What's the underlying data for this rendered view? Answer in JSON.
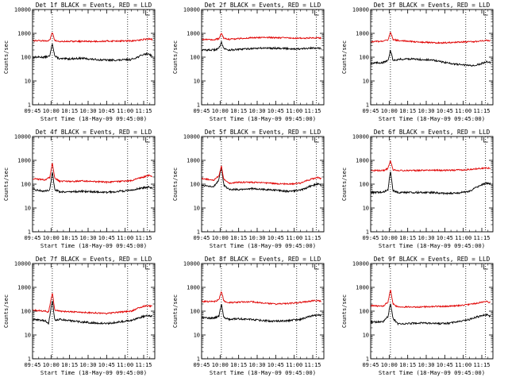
{
  "figure": {
    "ylabel": "Counts/sec",
    "xlabel": "Start Time (18-May-09 09:45:00)",
    "ytick_labels": [
      "1",
      "10",
      "100",
      "1000",
      "10000"
    ],
    "ytick_values": [
      1,
      10,
      100,
      1000,
      10000
    ],
    "xtick_labels": [
      "09:45",
      "10:00",
      "10:15",
      "10:30",
      "10:45",
      "11:00",
      "11:15"
    ],
    "colors": {
      "events": "#000000",
      "lld": "#e00000",
      "axes": "#000000",
      "marker": "#000000"
    }
  },
  "chart_data": [
    {
      "type": "line",
      "title": "Det 1f BLACK = Events, RED = LLD",
      "xlabel": "Start Time (18-May-09 09:45:00)",
      "ylabel": "Counts/sec",
      "x_unit": "minutes after 09:45",
      "xlim": [
        0,
        99
      ],
      "ylim": [
        1,
        10000
      ],
      "y_scale": "log",
      "markers_vertical": [
        16,
        77,
        93
      ],
      "series": [
        {
          "name": "Events",
          "color": "#000000",
          "x": [
            0,
            10,
            14,
            16,
            18,
            22,
            30,
            40,
            50,
            60,
            70,
            80,
            85,
            90,
            94,
            97
          ],
          "values": [
            100,
            100,
            110,
            400,
            110,
            85,
            85,
            90,
            80,
            75,
            75,
            80,
            100,
            130,
            140,
            110
          ]
        },
        {
          "name": "LLD",
          "color": "#e00000",
          "x": [
            0,
            10,
            14,
            16,
            18,
            22,
            30,
            40,
            50,
            60,
            70,
            80,
            85,
            90,
            94,
            97
          ],
          "values": [
            500,
            480,
            520,
            1100,
            500,
            450,
            460,
            460,
            460,
            470,
            480,
            480,
            500,
            560,
            580,
            560
          ]
        }
      ]
    },
    {
      "type": "line",
      "title": "Det 2f BLACK = Events, RED = LLD",
      "xlabel": "Start Time (18-May-09 09:45:00)",
      "ylabel": "Counts/sec",
      "x_unit": "minutes after 09:45",
      "xlim": [
        0,
        99
      ],
      "ylim": [
        1,
        10000
      ],
      "y_scale": "log",
      "markers_vertical": [
        16,
        77,
        93
      ],
      "series": [
        {
          "name": "Events",
          "color": "#000000",
          "x": [
            0,
            10,
            14,
            16,
            18,
            22,
            30,
            40,
            50,
            60,
            70,
            80,
            85,
            90,
            94,
            97
          ],
          "values": [
            200,
            200,
            230,
            450,
            230,
            200,
            210,
            230,
            240,
            240,
            230,
            220,
            230,
            240,
            250,
            230
          ]
        },
        {
          "name": "LLD",
          "color": "#e00000",
          "x": [
            0,
            10,
            14,
            16,
            18,
            22,
            30,
            40,
            50,
            60,
            70,
            80,
            85,
            90,
            94,
            97
          ],
          "values": [
            550,
            530,
            600,
            1000,
            620,
            560,
            600,
            650,
            680,
            660,
            640,
            620,
            630,
            640,
            660,
            620
          ]
        }
      ]
    },
    {
      "type": "line",
      "title": "Det 3f BLACK = Events, RED = LLD",
      "xlabel": "Start Time (18-May-09 09:45:00)",
      "ylabel": "Counts/sec",
      "x_unit": "minutes after 09:45",
      "xlim": [
        0,
        99
      ],
      "ylim": [
        1,
        10000
      ],
      "y_scale": "log",
      "markers_vertical": [
        16,
        77,
        93
      ],
      "series": [
        {
          "name": "Events",
          "color": "#000000",
          "x": [
            0,
            10,
            14,
            16,
            18,
            22,
            30,
            40,
            50,
            60,
            70,
            80,
            85,
            90,
            94,
            97
          ],
          "values": [
            55,
            60,
            70,
            200,
            75,
            80,
            85,
            80,
            75,
            60,
            50,
            45,
            45,
            55,
            65,
            60
          ]
        },
        {
          "name": "LLD",
          "color": "#e00000",
          "x": [
            0,
            10,
            14,
            16,
            18,
            22,
            30,
            40,
            50,
            60,
            70,
            80,
            85,
            90,
            94,
            97
          ],
          "values": [
            450,
            460,
            520,
            1200,
            560,
            500,
            470,
            430,
            410,
            400,
            420,
            440,
            460,
            480,
            500,
            480
          ]
        }
      ]
    },
    {
      "type": "line",
      "title": "Det 4f BLACK = Events, RED = LLD",
      "xlabel": "Start Time (18-May-09 09:45:00)",
      "ylabel": "Counts/sec",
      "x_unit": "minutes after 09:45",
      "xlim": [
        0,
        99
      ],
      "ylim": [
        1,
        10000
      ],
      "y_scale": "log",
      "markers_vertical": [
        16,
        77,
        93
      ],
      "series": [
        {
          "name": "Events",
          "color": "#000000",
          "x": [
            0,
            10,
            14,
            16,
            18,
            22,
            30,
            40,
            50,
            60,
            70,
            80,
            85,
            90,
            94,
            97
          ],
          "values": [
            60,
            50,
            60,
            320,
            60,
            48,
            48,
            50,
            48,
            45,
            50,
            55,
            65,
            70,
            75,
            70
          ]
        },
        {
          "name": "LLD",
          "color": "#e00000",
          "x": [
            0,
            10,
            14,
            16,
            18,
            22,
            30,
            40,
            50,
            60,
            70,
            80,
            85,
            90,
            94,
            97
          ],
          "values": [
            170,
            150,
            190,
            800,
            180,
            130,
            130,
            135,
            130,
            120,
            130,
            140,
            170,
            200,
            230,
            210
          ]
        }
      ]
    },
    {
      "type": "line",
      "title": "Det 5f BLACK = Events, RED = LLD",
      "xlabel": "Start Time (18-May-09 09:45:00)",
      "ylabel": "Counts/sec",
      "x_unit": "minutes after 09:45",
      "xlim": [
        0,
        99
      ],
      "ylim": [
        1,
        10000
      ],
      "y_scale": "log",
      "markers_vertical": [
        16,
        77,
        93
      ],
      "series": [
        {
          "name": "Events",
          "color": "#000000",
          "x": [
            0,
            10,
            14,
            16,
            18,
            22,
            30,
            40,
            50,
            60,
            70,
            80,
            85,
            90,
            94,
            97
          ],
          "values": [
            90,
            80,
            150,
            550,
            90,
            60,
            60,
            65,
            60,
            55,
            50,
            55,
            70,
            90,
            100,
            90
          ]
        },
        {
          "name": "LLD",
          "color": "#e00000",
          "x": [
            0,
            10,
            14,
            16,
            18,
            22,
            30,
            40,
            50,
            60,
            70,
            80,
            85,
            90,
            94,
            97
          ],
          "values": [
            170,
            150,
            220,
            600,
            160,
            110,
            120,
            120,
            115,
            105,
            100,
            110,
            140,
            170,
            190,
            170
          ]
        }
      ]
    },
    {
      "type": "line",
      "title": "Det 6f BLACK = Events, RED = LLD",
      "xlabel": "Start Time (18-May-09 09:45:00)",
      "ylabel": "Counts/sec",
      "x_unit": "minutes after 09:45",
      "xlim": [
        0,
        99
      ],
      "ylim": [
        1,
        10000
      ],
      "y_scale": "log",
      "markers_vertical": [
        16,
        77,
        93
      ],
      "series": [
        {
          "name": "Events",
          "color": "#000000",
          "x": [
            0,
            10,
            14,
            16,
            18,
            22,
            30,
            40,
            50,
            60,
            70,
            80,
            85,
            90,
            94,
            97
          ],
          "values": [
            45,
            45,
            60,
            350,
            55,
            45,
            45,
            45,
            45,
            40,
            42,
            50,
            70,
            95,
            110,
            100
          ]
        },
        {
          "name": "LLD",
          "color": "#e00000",
          "x": [
            0,
            10,
            14,
            16,
            18,
            22,
            30,
            40,
            50,
            60,
            70,
            80,
            85,
            90,
            94,
            97
          ],
          "values": [
            380,
            370,
            450,
            1000,
            400,
            370,
            370,
            380,
            380,
            380,
            390,
            410,
            440,
            470,
            480,
            460
          ]
        }
      ]
    },
    {
      "type": "line",
      "title": "Det 7f BLACK = Events, RED = LLD",
      "xlabel": "Start Time (18-May-09 09:45:00)",
      "ylabel": "Counts/sec",
      "x_unit": "minutes after 09:45",
      "xlim": [
        0,
        99
      ],
      "ylim": [
        1,
        10000
      ],
      "y_scale": "log",
      "markers_vertical": [
        16,
        77,
        93
      ],
      "series": [
        {
          "name": "Events",
          "color": "#000000",
          "x": [
            0,
            10,
            13,
            16,
            18,
            22,
            30,
            40,
            50,
            60,
            70,
            80,
            85,
            90,
            94,
            97
          ],
          "values": [
            45,
            40,
            30,
            300,
            40,
            45,
            40,
            35,
            32,
            30,
            35,
            40,
            50,
            60,
            65,
            60
          ]
        },
        {
          "name": "LLD",
          "color": "#e00000",
          "x": [
            0,
            10,
            13,
            16,
            18,
            22,
            30,
            40,
            50,
            60,
            70,
            80,
            85,
            90,
            94,
            97
          ],
          "values": [
            110,
            100,
            90,
            600,
            110,
            100,
            95,
            90,
            85,
            80,
            90,
            100,
            130,
            160,
            170,
            160
          ]
        }
      ]
    },
    {
      "type": "line",
      "title": "Det 8f BLACK = Events, RED = LLD",
      "xlabel": "Start Time (18-May-09 09:45:00)",
      "ylabel": "Counts/sec",
      "x_unit": "minutes after 09:45",
      "xlim": [
        0,
        99
      ],
      "ylim": [
        1,
        10000
      ],
      "y_scale": "log",
      "markers_vertical": [
        16,
        77,
        93
      ],
      "series": [
        {
          "name": "Events",
          "color": "#000000",
          "x": [
            0,
            10,
            14,
            16,
            18,
            22,
            30,
            40,
            50,
            60,
            70,
            80,
            85,
            90,
            94,
            97
          ],
          "values": [
            55,
            50,
            60,
            200,
            55,
            45,
            48,
            45,
            40,
            38,
            40,
            45,
            55,
            65,
            70,
            65
          ]
        },
        {
          "name": "LLD",
          "color": "#e00000",
          "x": [
            0,
            10,
            14,
            16,
            18,
            22,
            30,
            40,
            50,
            60,
            70,
            80,
            85,
            90,
            94,
            97
          ],
          "values": [
            260,
            250,
            300,
            700,
            270,
            230,
            240,
            250,
            220,
            200,
            210,
            230,
            250,
            270,
            280,
            260
          ]
        }
      ]
    },
    {
      "type": "line",
      "title": "Det 9f BLACK = Events, RED = LLD",
      "xlabel": "Start Time (18-May-09 09:45:00)",
      "ylabel": "Counts/sec",
      "x_unit": "minutes after 09:45",
      "xlim": [
        0,
        99
      ],
      "ylim": [
        1,
        10000
      ],
      "y_scale": "log",
      "markers_vertical": [
        16,
        77,
        93
      ],
      "series": [
        {
          "name": "Events",
          "color": "#000000",
          "x": [
            0,
            10,
            14,
            16,
            18,
            22,
            30,
            40,
            50,
            60,
            70,
            80,
            85,
            90,
            94,
            97
          ],
          "values": [
            35,
            35,
            60,
            220,
            50,
            30,
            30,
            32,
            30,
            30,
            35,
            45,
            55,
            65,
            70,
            60
          ]
        },
        {
          "name": "LLD",
          "color": "#e00000",
          "x": [
            0,
            10,
            14,
            16,
            18,
            22,
            30,
            40,
            50,
            60,
            70,
            80,
            85,
            90,
            94,
            97
          ],
          "values": [
            170,
            160,
            240,
            850,
            200,
            150,
            150,
            150,
            155,
            160,
            170,
            190,
            210,
            240,
            250,
            230
          ]
        }
      ]
    }
  ]
}
